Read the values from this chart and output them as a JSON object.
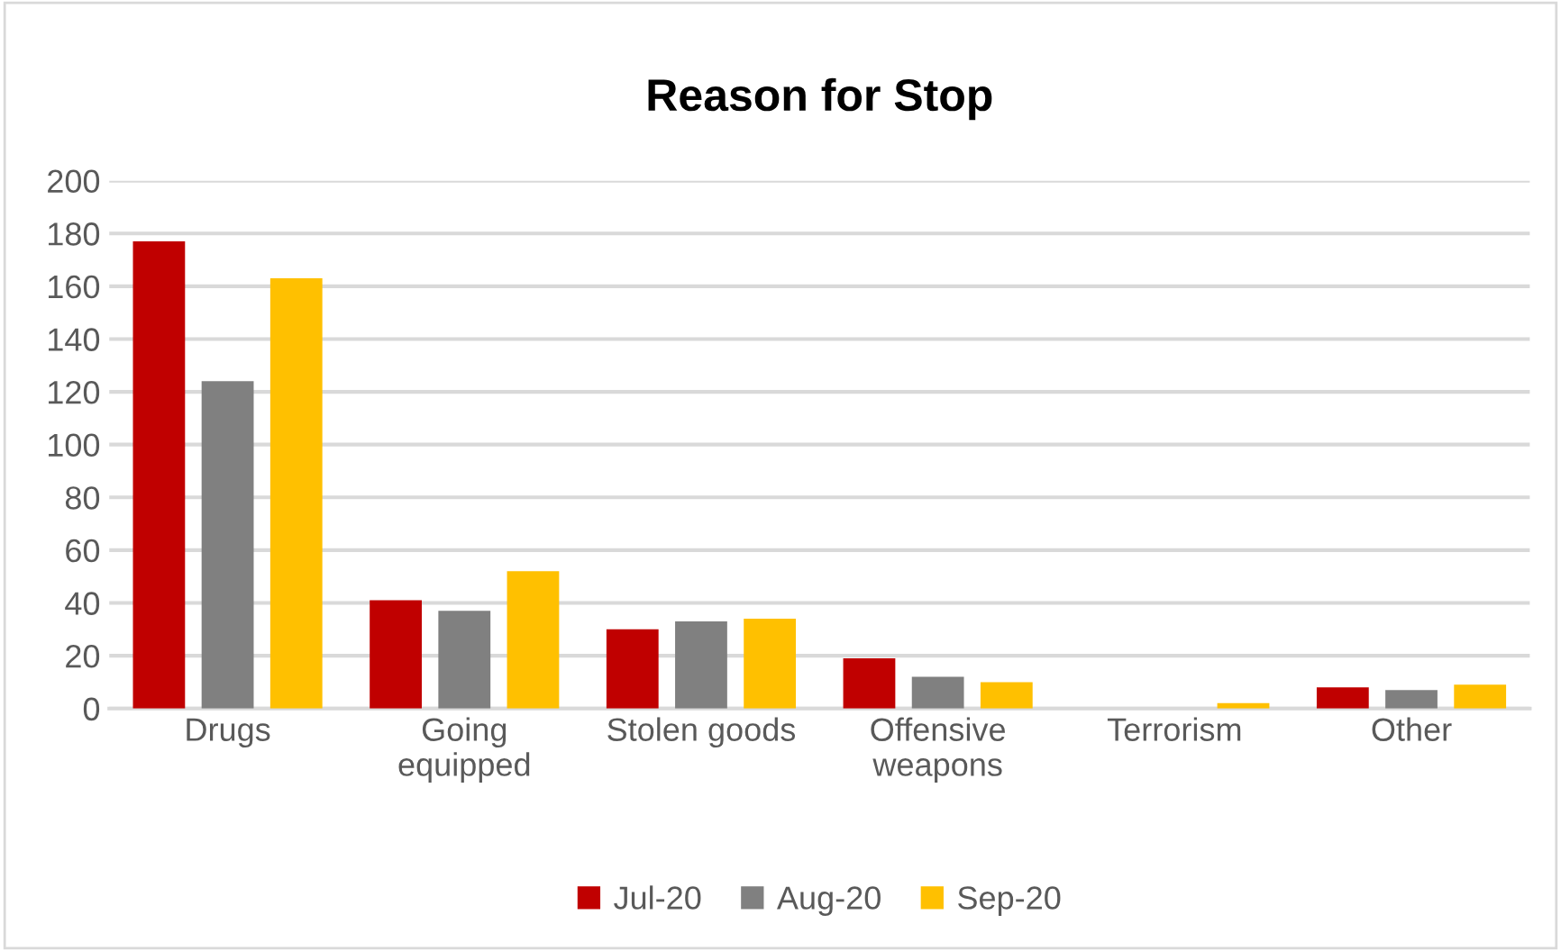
{
  "chart_data": {
    "type": "bar",
    "title": "Reason for Stop",
    "categories": [
      "Drugs",
      "Going\nequipped",
      "Stolen goods",
      "Offensive\nweapons",
      "Terrorism",
      "Other"
    ],
    "series": [
      {
        "name": "Jul-20",
        "color": "#c00000",
        "values": [
          177,
          41,
          30,
          19,
          0,
          8
        ]
      },
      {
        "name": "Aug-20",
        "color": "#808080",
        "values": [
          124,
          37,
          33,
          12,
          0,
          7
        ]
      },
      {
        "name": "Sep-20",
        "color": "#ffc000",
        "values": [
          163,
          52,
          34,
          10,
          2,
          9
        ]
      }
    ],
    "ylim": [
      0,
      200
    ],
    "yticks": [
      0,
      20,
      40,
      60,
      80,
      100,
      120,
      140,
      160,
      180,
      200
    ],
    "grid": "y",
    "legend": "bottom"
  }
}
